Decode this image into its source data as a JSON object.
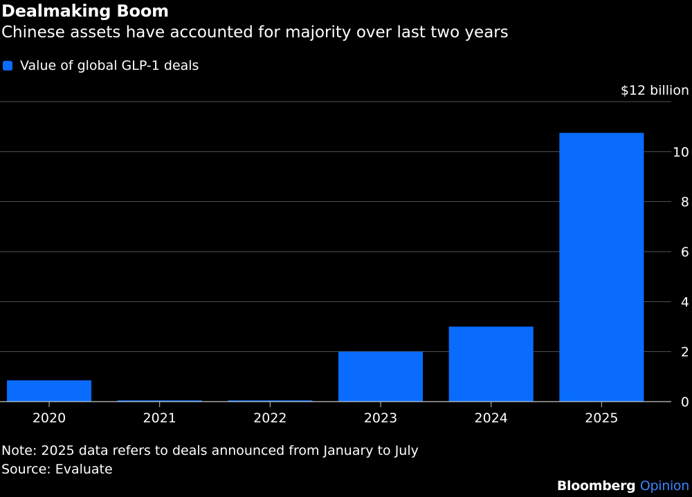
{
  "header": {
    "title": "Dealmaking Boom",
    "subtitle": "Chinese assets have accounted for majority over last two years"
  },
  "legend": {
    "label": "Value of global GLP-1 deals"
  },
  "colors": {
    "bar": "#0a6cff",
    "grid": "#555555",
    "axis": "#c8c8c8",
    "background": "#000000"
  },
  "chart_data": {
    "type": "bar",
    "title": "Dealmaking Boom",
    "subtitle": "Chinese assets have accounted for majority over last two years",
    "xlabel": "",
    "ylabel": "",
    "ylim": [
      0,
      12
    ],
    "y_unit_label": "$12 billion",
    "yticks": [
      0,
      2,
      4,
      6,
      8,
      10
    ],
    "grid": true,
    "legend_position": "top-left",
    "categories": [
      "2020",
      "2021",
      "2022",
      "2023",
      "2024",
      "2025"
    ],
    "series": [
      {
        "name": "Value of global GLP-1 deals",
        "values": [
          0.85,
          0.05,
          0.05,
          2.0,
          3.0,
          10.75
        ]
      }
    ]
  },
  "footer": {
    "note": "Note: 2025 data refers to deals announced from January to July",
    "source": "Source: Evaluate",
    "brand_main": "Bloomberg",
    "brand_accent": "Opinion"
  }
}
